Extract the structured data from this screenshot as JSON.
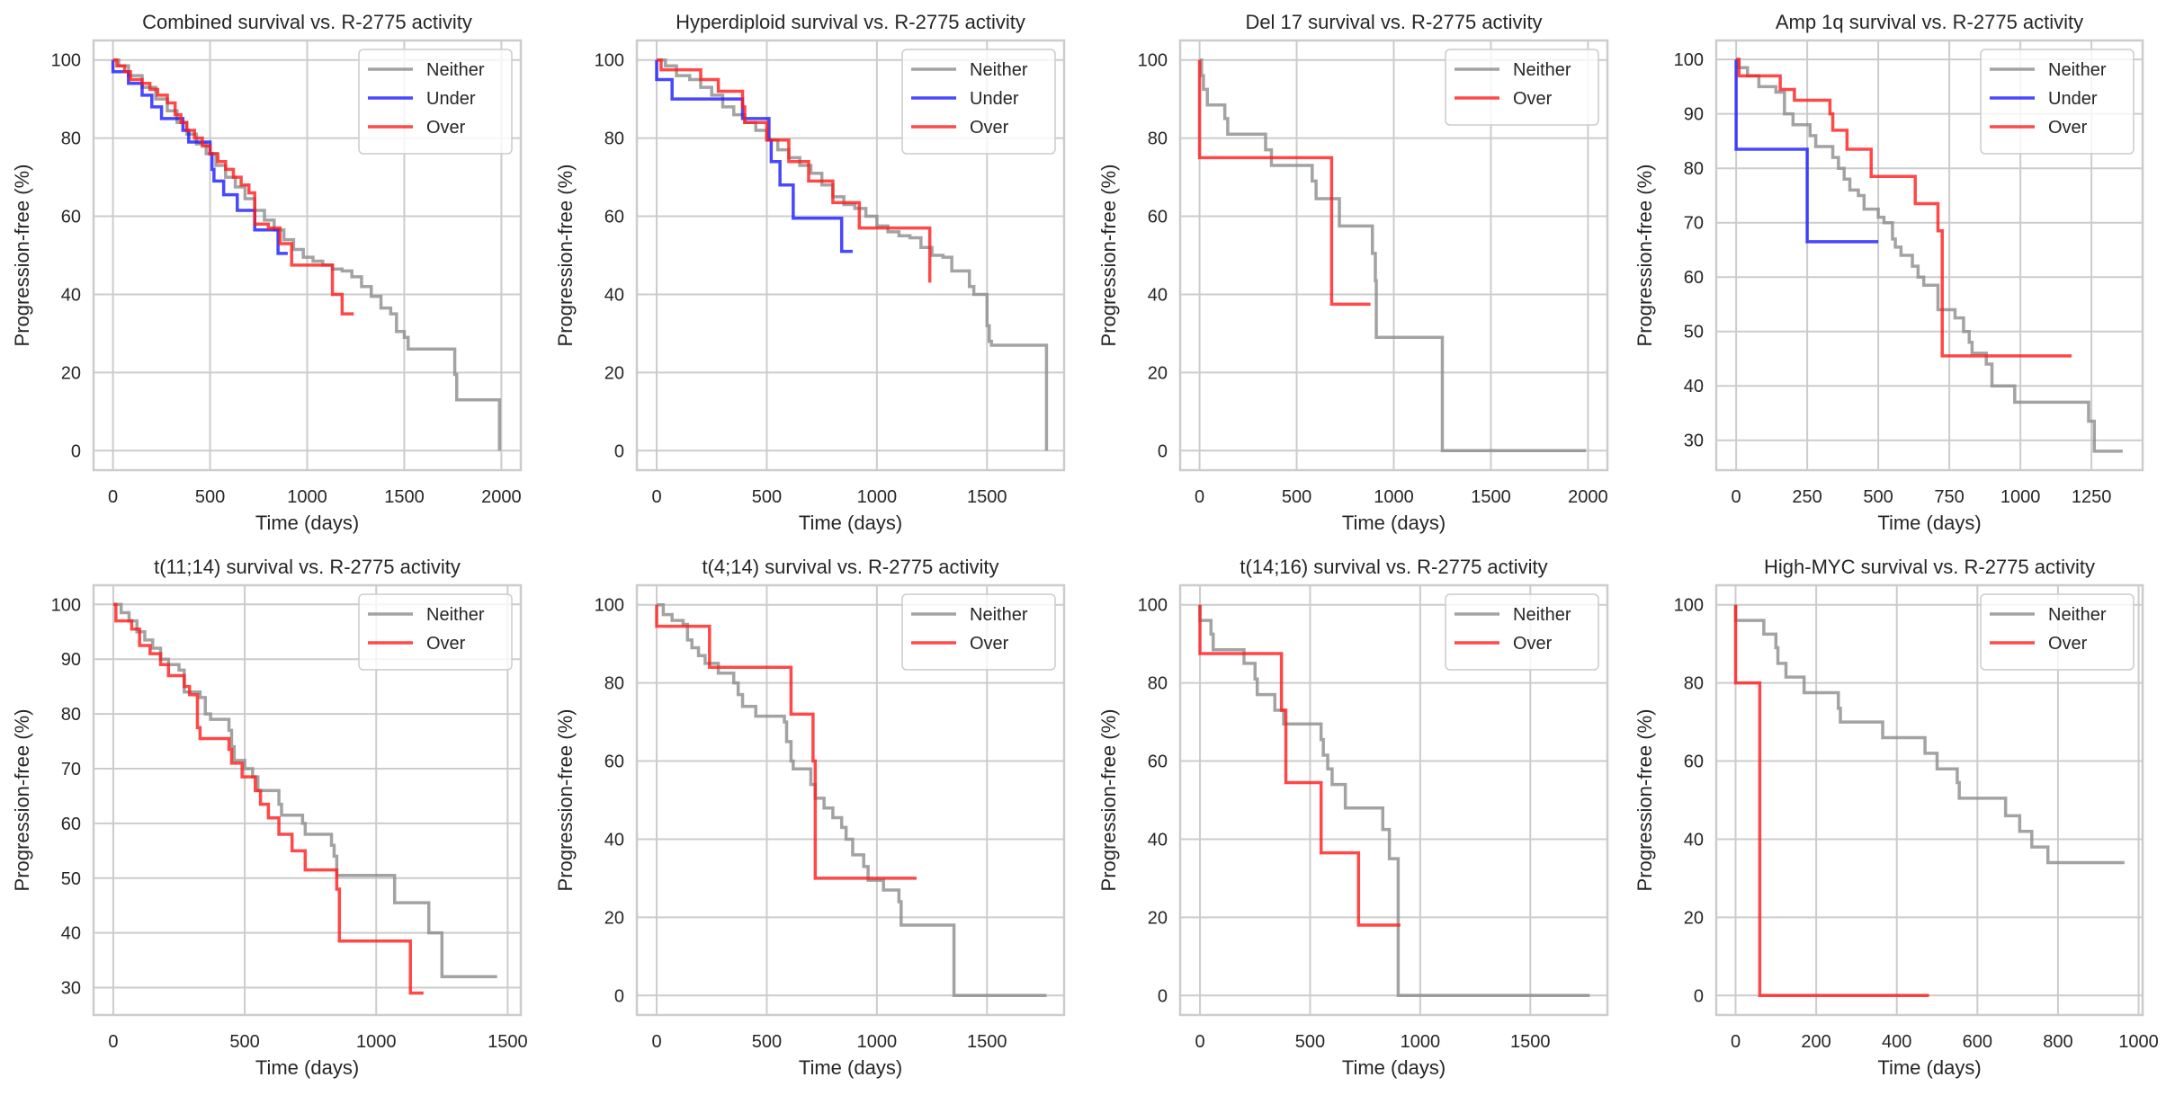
{
  "figure": {
    "layout": "2 rows x 4 columns of Kaplan-Meier step plots"
  },
  "series_colors": {
    "Neither": "#8c8c8c",
    "Under": "#1a1aff",
    "Over": "#ff1a1a"
  },
  "chart_data": [
    {
      "type": "line",
      "subtype": "step",
      "title": "Combined survival vs. R-2775 activity",
      "xlabel": "Time (days)",
      "ylabel": "Progression-free (%)",
      "xlim": [
        -100,
        2100
      ],
      "ylim": [
        -5,
        105
      ],
      "xticks": [
        0,
        500,
        1000,
        1500,
        2000
      ],
      "yticks": [
        0,
        20,
        40,
        60,
        80,
        100
      ],
      "grid": true,
      "legend": {
        "position": "top-right",
        "entries": [
          "Neither",
          "Under",
          "Over"
        ]
      },
      "series": [
        {
          "name": "Neither",
          "x": [
            0,
            30,
            80,
            150,
            220,
            280,
            330,
            380,
            430,
            480,
            530,
            580,
            630,
            680,
            730,
            780,
            830,
            880,
            930,
            980,
            1030,
            1080,
            1130,
            1180,
            1230,
            1280,
            1330,
            1380,
            1430,
            1460,
            1500,
            1520,
            1760,
            1770,
            1990
          ],
          "y": [
            100,
            98.5,
            96,
            93,
            90,
            87,
            84,
            81,
            78.5,
            76,
            73,
            70,
            67.5,
            64.5,
            61.5,
            59,
            56.5,
            54,
            51.5,
            49.5,
            48.5,
            47.5,
            46.5,
            46,
            44.5,
            42,
            39.5,
            36.5,
            35,
            30.5,
            29,
            26,
            19.5,
            13,
            0
          ]
        },
        {
          "name": "Under",
          "x": [
            0,
            80,
            150,
            200,
            250,
            360,
            390,
            500,
            510,
            520,
            570,
            640,
            730,
            850,
            900
          ],
          "y": [
            97,
            94,
            91,
            88,
            85,
            82,
            79,
            76,
            72,
            69,
            65.5,
            61.5,
            56.5,
            50.5,
            50.5
          ]
        },
        {
          "name": "Over",
          "x": [
            0,
            20,
            60,
            90,
            150,
            190,
            230,
            280,
            320,
            350,
            380,
            420,
            460,
            500,
            540,
            580,
            620,
            660,
            700,
            730,
            800,
            860,
            920,
            1050,
            1130,
            1180,
            1240
          ],
          "y": [
            100,
            98.5,
            97,
            95,
            94,
            92.5,
            91,
            89,
            86,
            84,
            82,
            80,
            78,
            76,
            74,
            72,
            70,
            68,
            66,
            58,
            57,
            53,
            47.5,
            47.5,
            40,
            35,
            35
          ]
        }
      ]
    },
    {
      "type": "line",
      "subtype": "step",
      "title": "Hyperdiploid survival vs. R-2775 activity",
      "xlabel": "Time (days)",
      "ylabel": "Progression-free (%)",
      "xlim": [
        -90,
        1850
      ],
      "ylim": [
        -5,
        105
      ],
      "xticks": [
        0,
        500,
        1000,
        1500
      ],
      "yticks": [
        0,
        20,
        40,
        60,
        80,
        100
      ],
      "grid": true,
      "legend": {
        "position": "top-right",
        "entries": [
          "Neither",
          "Under",
          "Over"
        ]
      },
      "series": [
        {
          "name": "Neither",
          "x": [
            0,
            40,
            90,
            150,
            200,
            250,
            300,
            350,
            400,
            450,
            500,
            550,
            600,
            650,
            700,
            750,
            800,
            850,
            900,
            950,
            1000,
            1050,
            1100,
            1150,
            1200,
            1250,
            1300,
            1340,
            1420,
            1440,
            1500,
            1510,
            1520,
            1770
          ],
          "y": [
            100,
            98.5,
            96,
            95,
            93,
            91,
            88,
            86,
            84,
            82,
            79.5,
            77,
            75,
            73,
            71,
            68,
            65,
            63,
            62,
            60,
            57.5,
            56,
            55,
            54.5,
            52,
            50,
            49.5,
            46,
            42,
            40,
            32,
            28,
            27,
            0
          ]
        },
        {
          "name": "Under",
          "x": [
            0,
            70,
            390,
            510,
            520,
            560,
            620,
            840,
            890
          ],
          "y": [
            95,
            90,
            85,
            79.5,
            74,
            68,
            59.5,
            51,
            51
          ]
        },
        {
          "name": "Over",
          "x": [
            0,
            20,
            200,
            280,
            390,
            400,
            500,
            600,
            690,
            800,
            920,
            1240
          ],
          "y": [
            100,
            97.5,
            95,
            92,
            88,
            84,
            79.5,
            74,
            69,
            63.5,
            57,
            43
          ]
        }
      ]
    },
    {
      "type": "line",
      "subtype": "step",
      "title": "Del 17 survival vs. R-2775 activity",
      "xlabel": "Time (days)",
      "ylabel": "Progression-free (%)",
      "xlim": [
        -100,
        2100
      ],
      "ylim": [
        -5,
        105
      ],
      "xticks": [
        0,
        500,
        1000,
        1500,
        2000
      ],
      "yticks": [
        0,
        20,
        40,
        60,
        80,
        100
      ],
      "grid": true,
      "legend": {
        "position": "top-right",
        "entries": [
          "Neither",
          "Over"
        ]
      },
      "series": [
        {
          "name": "Neither",
          "x": [
            0,
            10,
            20,
            40,
            130,
            145,
            340,
            370,
            580,
            600,
            720,
            890,
            905,
            910,
            1250,
            1990
          ],
          "y": [
            100,
            96,
            92.5,
            88.5,
            85,
            81,
            77,
            73,
            69,
            64.5,
            57.5,
            50.5,
            43.5,
            29,
            0,
            0
          ]
        },
        {
          "name": "Over",
          "x": [
            0,
            680,
            880
          ],
          "y": [
            75,
            37.5,
            37.5
          ]
        }
      ]
    },
    {
      "type": "line",
      "subtype": "step",
      "title": "Amp 1q survival vs. R-2775 activity",
      "xlabel": "Time (days)",
      "ylabel": "Progression-free (%)",
      "xlim": [
        -70,
        1430
      ],
      "ylim": [
        24.5,
        103.5
      ],
      "xticks": [
        0,
        250,
        500,
        750,
        1000,
        1250
      ],
      "yticks": [
        30,
        40,
        50,
        60,
        70,
        80,
        90,
        100
      ],
      "grid": true,
      "legend": {
        "position": "top-right",
        "entries": [
          "Neither",
          "Under",
          "Over"
        ]
      },
      "series": [
        {
          "name": "Neither",
          "x": [
            0,
            10,
            40,
            80,
            140,
            170,
            200,
            260,
            280,
            340,
            360,
            380,
            400,
            430,
            450,
            490,
            500,
            520,
            550,
            560,
            580,
            620,
            640,
            660,
            710,
            730,
            770,
            800,
            820,
            830,
            870,
            880,
            900,
            980,
            1240,
            1260,
            1360
          ],
          "y": [
            100,
            98.5,
            97,
            95,
            94,
            90,
            88,
            86,
            84,
            82,
            80,
            78,
            76,
            75,
            72.5,
            72.5,
            71,
            70,
            67,
            65.5,
            64,
            62,
            60,
            58.5,
            54,
            54,
            52.5,
            50,
            48,
            46,
            46,
            44,
            40,
            37,
            33.5,
            28,
            28
          ]
        },
        {
          "name": "Under",
          "x": [
            0,
            250,
            500
          ],
          "y": [
            83.5,
            66.5,
            66.5
          ]
        },
        {
          "name": "Over",
          "x": [
            0,
            10,
            155,
            205,
            330,
            340,
            390,
            475,
            630,
            710,
            725,
            1180
          ],
          "y": [
            100,
            97,
            94.5,
            92.5,
            90,
            87,
            83.5,
            78.5,
            73.5,
            68.5,
            45.5,
            45.5
          ]
        }
      ]
    },
    {
      "type": "line",
      "subtype": "step",
      "title": "t(11;14) survival vs. R-2775 activity",
      "xlabel": "Time (days)",
      "ylabel": "Progression-free (%)",
      "xlim": [
        -75,
        1550
      ],
      "ylim": [
        25,
        103.5
      ],
      "xticks": [
        0,
        500,
        1000,
        1500
      ],
      "yticks": [
        30,
        40,
        50,
        60,
        70,
        80,
        90,
        100
      ],
      "grid": true,
      "legend": {
        "position": "top-right",
        "entries": [
          "Neither",
          "Over"
        ]
      },
      "series": [
        {
          "name": "Neither",
          "x": [
            0,
            30,
            60,
            90,
            120,
            150,
            180,
            210,
            250,
            270,
            330,
            350,
            370,
            440,
            450,
            460,
            480,
            500,
            530,
            550,
            630,
            640,
            720,
            730,
            830,
            840,
            850,
            870,
            1070,
            1200,
            1250,
            1460
          ],
          "y": [
            100,
            98.5,
            97,
            95,
            93.5,
            92,
            90,
            89,
            88,
            84,
            83,
            80,
            79,
            77,
            74,
            71.5,
            71.5,
            70,
            68.5,
            66,
            63.5,
            61.5,
            60,
            58,
            56,
            54,
            50.5,
            50.5,
            45.5,
            40,
            32,
            32
          ]
        },
        {
          "name": "Over",
          "x": [
            0,
            10,
            70,
            100,
            140,
            180,
            210,
            270,
            290,
            320,
            330,
            440,
            450,
            490,
            540,
            560,
            590,
            630,
            680,
            730,
            850,
            860,
            1130,
            1180
          ],
          "y": [
            100,
            97,
            95.5,
            92.5,
            91,
            89,
            87,
            85,
            83.5,
            77.5,
            75.5,
            73.5,
            71,
            68.5,
            66,
            63.5,
            61,
            58,
            55,
            51.5,
            48,
            38.5,
            29,
            29
          ]
        }
      ]
    },
    {
      "type": "line",
      "subtype": "step",
      "title": "t(4;14) survival vs. R-2775 activity",
      "xlabel": "Time (days)",
      "ylabel": "Progression-free (%)",
      "xlim": [
        -90,
        1850
      ],
      "ylim": [
        -5,
        105
      ],
      "xticks": [
        0,
        500,
        1000,
        1500
      ],
      "yticks": [
        0,
        20,
        40,
        60,
        80,
        100
      ],
      "grid": true,
      "legend": {
        "position": "top-right",
        "entries": [
          "Neither",
          "Over"
        ]
      },
      "series": [
        {
          "name": "Neither",
          "x": [
            0,
            30,
            70,
            120,
            140,
            160,
            190,
            220,
            280,
            350,
            370,
            390,
            450,
            580,
            590,
            610,
            620,
            700,
            720,
            760,
            800,
            840,
            860,
            890,
            940,
            960,
            1030,
            1100,
            1110,
            1350,
            1770
          ],
          "y": [
            100,
            97.5,
            96,
            95,
            91,
            89,
            87,
            85,
            82.5,
            80,
            77,
            74,
            71.5,
            70,
            65,
            60,
            58,
            54,
            50.5,
            48,
            45.5,
            43,
            40,
            36,
            33,
            29.5,
            27,
            24,
            18,
            0,
            0
          ]
        },
        {
          "name": "Over",
          "x": [
            0,
            240,
            610,
            710,
            720,
            1180
          ],
          "y": [
            94.5,
            84,
            72,
            60,
            30,
            30
          ]
        }
      ]
    },
    {
      "type": "line",
      "subtype": "step",
      "title": "t(14;16) survival vs. R-2775 activity",
      "xlabel": "Time (days)",
      "ylabel": "Progression-free (%)",
      "xlim": [
        -90,
        1850
      ],
      "ylim": [
        -5,
        105
      ],
      "xticks": [
        0,
        500,
        1000,
        1500
      ],
      "yticks": [
        0,
        20,
        40,
        60,
        80,
        100
      ],
      "grid": true,
      "legend": {
        "position": "top-right",
        "entries": [
          "Neither",
          "Over"
        ]
      },
      "series": [
        {
          "name": "Neither",
          "x": [
            0,
            50,
            60,
            200,
            250,
            260,
            340,
            380,
            550,
            560,
            580,
            600,
            660,
            830,
            860,
            900,
            1770
          ],
          "y": [
            96,
            92.5,
            88.5,
            85,
            81,
            77,
            73,
            69.5,
            65.5,
            61.5,
            58,
            54,
            48,
            42.5,
            35,
            0,
            0
          ]
        },
        {
          "name": "Over",
          "x": [
            0,
            370,
            390,
            550,
            720,
            910
          ],
          "y": [
            87.5,
            73,
            54.5,
            36.5,
            18,
            18
          ]
        }
      ]
    },
    {
      "type": "line",
      "subtype": "step",
      "title": "High-MYC survival vs. R-2775 activity",
      "xlabel": "Time (days)",
      "ylabel": "Progression-free (%)",
      "xlim": [
        -48,
        1010
      ],
      "ylim": [
        -5,
        105
      ],
      "xticks": [
        0,
        200,
        400,
        600,
        800,
        1000
      ],
      "yticks": [
        0,
        20,
        40,
        60,
        80,
        100
      ],
      "grid": true,
      "legend": {
        "position": "top-right",
        "entries": [
          "Neither",
          "Over"
        ]
      },
      "series": [
        {
          "name": "Neither",
          "x": [
            0,
            70,
            100,
            105,
            125,
            170,
            255,
            260,
            365,
            470,
            500,
            550,
            555,
            670,
            705,
            735,
            775,
            965
          ],
          "y": [
            96,
            92.5,
            89,
            85,
            81.5,
            77.5,
            73.5,
            70,
            66,
            62,
            58,
            54.5,
            50.5,
            46,
            42,
            38,
            34,
            34
          ]
        },
        {
          "name": "Over",
          "x": [
            0,
            60,
            480
          ],
          "y": [
            80,
            0,
            0
          ]
        }
      ]
    }
  ]
}
